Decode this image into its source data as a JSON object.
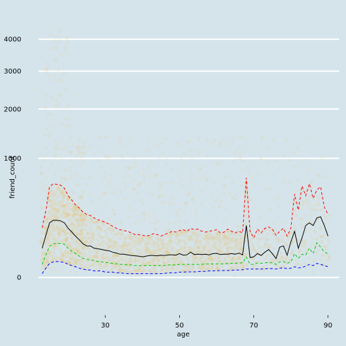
{
  "chart_data": {
    "type": "scatter",
    "title": "",
    "xlabel": "age",
    "ylabel": "friend_count",
    "x_ticks": [
      30,
      50,
      70,
      90
    ],
    "y_ticks": [
      0,
      1000,
      2000,
      3000,
      4000
    ],
    "y_scale": "sqrt",
    "xlim": [
      12,
      93
    ],
    "ylim": [
      -100,
      4750
    ],
    "grid": "horizontal major gridlines (white)",
    "background_color": "#d5e4eb",
    "point_color": "#f8a800",
    "point_alpha": 0.05,
    "series": [
      {
        "style": "dashed",
        "color": "#ff0000",
        "quantile": 0.9,
        "x": [
          13,
          14,
          15,
          16,
          17,
          18,
          19,
          20,
          21,
          22,
          23,
          24,
          25,
          26,
          27,
          28,
          29,
          30,
          31,
          32,
          33,
          34,
          35,
          36,
          37,
          38,
          39,
          40,
          41,
          42,
          43,
          44,
          45,
          46,
          47,
          48,
          49,
          50,
          51,
          52,
          53,
          54,
          55,
          56,
          57,
          58,
          59,
          60,
          61,
          62,
          63,
          64,
          65,
          66,
          67,
          68,
          69,
          70,
          71,
          72,
          73,
          74,
          75,
          76,
          77,
          78,
          79,
          80,
          81,
          82,
          83,
          84,
          85,
          86,
          87,
          88,
          89,
          90
        ],
        "y": [
          175,
          310,
          580,
          620,
          610,
          600,
          560,
          470,
          420,
          370,
          340,
          300,
          280,
          270,
          250,
          235,
          225,
          215,
          200,
          185,
          170,
          160,
          155,
          150,
          140,
          130,
          130,
          125,
          120,
          125,
          135,
          130,
          120,
          130,
          140,
          150,
          145,
          155,
          160,
          150,
          170,
          160,
          165,
          150,
          145,
          150,
          155,
          160,
          140,
          145,
          165,
          150,
          140,
          150,
          140,
          700,
          150,
          110,
          165,
          140,
          170,
          180,
          165,
          125,
          150,
          170,
          120,
          170,
          490,
          320,
          590,
          470,
          620,
          440,
          540,
          580,
          350,
          280
        ]
      },
      {
        "style": "solid",
        "color": "#000000",
        "quantile": 0.5,
        "x": [
          13,
          14,
          15,
          16,
          17,
          18,
          19,
          20,
          21,
          22,
          23,
          24,
          25,
          26,
          27,
          28,
          29,
          30,
          31,
          32,
          33,
          34,
          35,
          36,
          37,
          38,
          39,
          40,
          41,
          42,
          43,
          44,
          45,
          46,
          47,
          48,
          49,
          50,
          51,
          52,
          53,
          54,
          55,
          56,
          57,
          58,
          59,
          60,
          61,
          62,
          63,
          64,
          65,
          66,
          67,
          68,
          69,
          70,
          71,
          72,
          73,
          74,
          75,
          76,
          77,
          78,
          79,
          80,
          81,
          82,
          83,
          84,
          85,
          86,
          87,
          88,
          89,
          90
        ],
        "y": [
          60,
          125,
          210,
          230,
          230,
          225,
          210,
          170,
          145,
          120,
          100,
          80,
          70,
          70,
          60,
          58,
          55,
          52,
          50,
          45,
          42,
          38,
          38,
          36,
          34,
          33,
          32,
          30,
          32,
          34,
          34,
          33,
          35,
          34,
          36,
          36,
          35,
          40,
          35,
          36,
          45,
          37,
          38,
          37,
          38,
          36,
          40,
          41,
          37,
          38,
          38,
          40,
          38,
          42,
          36,
          190,
          28,
          30,
          40,
          34,
          45,
          55,
          40,
          25,
          65,
          70,
          35,
          90,
          150,
          60,
          110,
          190,
          210,
          190,
          250,
          260,
          190,
          120
        ]
      },
      {
        "style": "dashed",
        "color": "#00cc00",
        "quantile": 0.25,
        "x": [
          13,
          14,
          15,
          16,
          17,
          18,
          19,
          20,
          21,
          22,
          23,
          24,
          25,
          26,
          27,
          28,
          29,
          30,
          31,
          32,
          33,
          34,
          35,
          36,
          37,
          38,
          39,
          40,
          41,
          42,
          43,
          44,
          45,
          46,
          47,
          48,
          49,
          50,
          51,
          52,
          53,
          54,
          55,
          56,
          57,
          58,
          59,
          60,
          61,
          62,
          63,
          64,
          65,
          66,
          67,
          68,
          69,
          70,
          71,
          72,
          73,
          74,
          75,
          76,
          77,
          78,
          79,
          80,
          81,
          82,
          83,
          84,
          85,
          86,
          87,
          88,
          89,
          90
        ],
        "y": [
          12,
          36,
          68,
          80,
          82,
          82,
          78,
          60,
          48,
          40,
          32,
          26,
          23,
          22,
          20,
          18,
          17,
          16,
          15,
          14,
          13,
          12,
          12,
          11,
          11,
          10,
          10,
          10,
          10,
          10,
          10,
          10,
          10,
          10,
          11,
          11,
          11,
          12,
          12,
          12,
          12,
          12,
          12,
          12,
          13,
          13,
          13,
          13,
          13,
          13,
          14,
          14,
          14,
          15,
          15,
          30,
          12,
          12,
          15,
          14,
          15,
          16,
          15,
          12,
          17,
          18,
          14,
          17,
          40,
          25,
          38,
          35,
          60,
          40,
          85,
          65,
          45,
          40
        ]
      },
      {
        "style": "dashed",
        "color": "#0000ff",
        "quantile": 0.1,
        "x": [
          13,
          14,
          15,
          16,
          17,
          18,
          19,
          20,
          21,
          22,
          23,
          24,
          25,
          26,
          27,
          28,
          29,
          30,
          31,
          32,
          33,
          34,
          35,
          36,
          37,
          38,
          39,
          40,
          41,
          42,
          43,
          44,
          45,
          46,
          47,
          48,
          49,
          50,
          51,
          52,
          53,
          54,
          55,
          56,
          57,
          58,
          59,
          60,
          61,
          62,
          63,
          64,
          65,
          66,
          67,
          68,
          69,
          70,
          71,
          72,
          73,
          74,
          75,
          76,
          77,
          78,
          79,
          80,
          81,
          82,
          83,
          84,
          85,
          86,
          87,
          88,
          89,
          90
        ],
        "y": [
          1,
          6,
          14,
          17,
          18,
          17,
          16,
          12,
          10,
          8,
          6,
          5,
          4,
          4,
          3,
          3,
          3,
          2,
          2,
          2,
          1.5,
          1.5,
          1.2,
          1,
          1,
          1,
          1,
          1,
          1,
          1,
          1,
          1,
          1,
          1.2,
          1.4,
          1.6,
          1.6,
          2,
          2,
          2.2,
          2.2,
          2.2,
          2.4,
          2.6,
          2.6,
          3,
          3,
          3.2,
          3.2,
          3.4,
          3.4,
          3.6,
          3.8,
          4,
          4.2,
          5,
          5,
          5,
          5,
          5,
          5.2,
          5.6,
          5.4,
          5,
          6,
          6.5,
          5.5,
          6,
          8,
          6.5,
          7,
          9,
          12,
          10,
          14,
          12,
          10,
          8
        ]
      }
    ]
  }
}
